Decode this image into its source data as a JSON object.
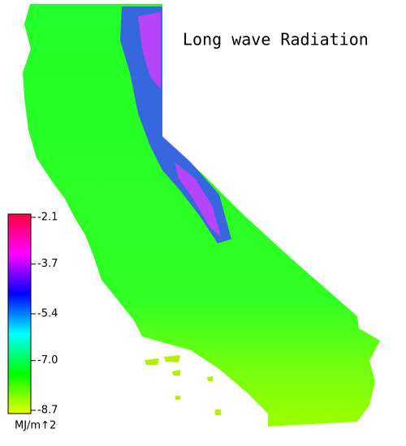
{
  "title": "Long wave Radiation",
  "colorbar": {
    "lim": [
      -8.7,
      -2.1
    ],
    "ticks": [
      -2.1,
      -3.7,
      -5.4,
      {
        "value": -7,
        "label": "-7.0"
      },
      -8.7
    ],
    "unit": "MJ/m↑2",
    "colors": [
      "#e8ff00",
      "#00ff00",
      "#00ffff",
      "#0000ff",
      "#ff00ff",
      "#ff0040"
    ]
  }
}
